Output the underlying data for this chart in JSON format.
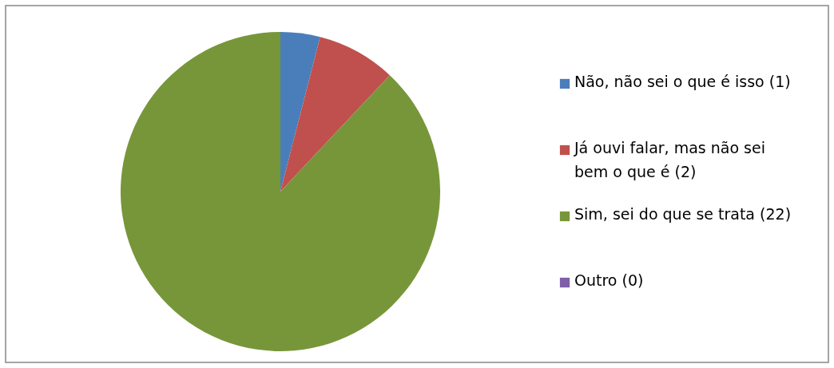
{
  "chart_data": {
    "type": "pie",
    "categories": [
      "Não, não sei o que é isso (1)",
      "Já ouvi falar, mas não sei bem o que é (2)",
      "Sim, sei do que se trata (22)",
      "Outro (0)"
    ],
    "values": [
      1,
      2,
      22,
      0
    ],
    "colors": [
      "#4a7ebb",
      "#c0504d",
      "#77963a",
      "#7f5fa8"
    ],
    "legend": "right"
  }
}
